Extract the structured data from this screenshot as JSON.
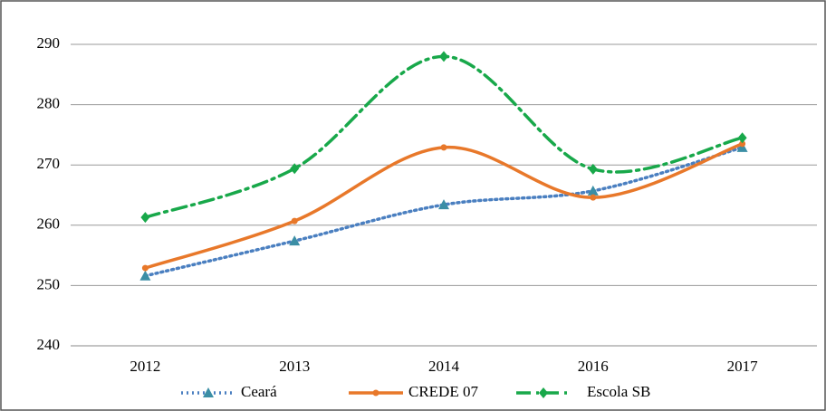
{
  "chart_data": {
    "type": "line",
    "categories": [
      "2012",
      "2013",
      "2014",
      "2016",
      "2017"
    ],
    "series": [
      {
        "name": "Ceará",
        "color": "#4a7fc0",
        "marker_color": "#3b8ea5",
        "marker": "triangle",
        "dash": "2 4",
        "values": [
          251.6,
          257.4,
          263.4,
          265.7,
          272.9
        ]
      },
      {
        "name": "CREDE 07",
        "color": "#e8782a",
        "marker_color": "#e8782a",
        "marker": "circle",
        "dash": "none",
        "values": [
          252.9,
          260.7,
          272.9,
          264.6,
          273.5
        ]
      },
      {
        "name": "Escola SB",
        "color": "#18a84a",
        "marker_color": "#18a84a",
        "marker": "diamond",
        "dash": "16 6 3 6",
        "values": [
          261.3,
          269.4,
          288.0,
          269.3,
          274.5
        ]
      }
    ],
    "ylim": [
      240,
      290
    ],
    "yticks": [
      240,
      250,
      260,
      270,
      280,
      290
    ],
    "grid": true,
    "legend": "bottom"
  }
}
